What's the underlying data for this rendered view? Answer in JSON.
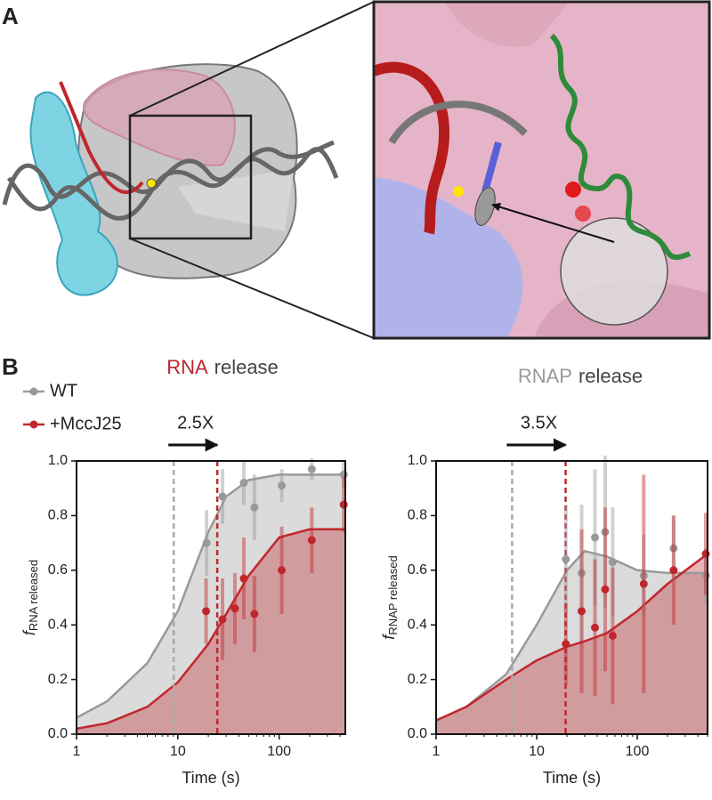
{
  "panel_labels": [
    "A",
    "B"
  ],
  "chart_data": [
    {
      "type": "scatter",
      "title": [
        "RNA",
        "release"
      ],
      "title_colors": [
        "#b9262f",
        "#444444"
      ],
      "xlabel": "Time (s)",
      "ylabel": "f",
      "ylabel_subscript": "RNA released",
      "xscale": "log",
      "xlim": [
        1,
        450
      ],
      "ylim": [
        0,
        1
      ],
      "xticks": [
        1,
        10,
        100
      ],
      "yticks": [
        {
          "value": 0,
          "label": "0.0"
        },
        0.2,
        0.4,
        0.6,
        0.8,
        {
          "value": 1,
          "label": "1.0"
        }
      ],
      "series": [
        {
          "name": "WT",
          "color": "#999999",
          "x": [
            19.2,
            27.6,
            44.8,
            57,
            106,
            210,
            434
          ],
          "values": [
            0.7,
            0.87,
            0.92,
            0.83,
            0.91,
            0.97,
            0.95
          ],
          "errors": [
            0.12,
            0.1,
            0.08,
            0.12,
            0.06,
            0.04,
            0.05
          ]
        },
        {
          "name": "+MccJ25",
          "color": "#c0272d",
          "x": [
            19,
            27.6,
            36.6,
            44.8,
            57,
            106,
            210,
            434
          ],
          "values": [
            0.45,
            0.42,
            0.46,
            0.57,
            0.44,
            0.6,
            0.71,
            0.84
          ],
          "errors": [
            0.12,
            0.15,
            0.13,
            0.15,
            0.14,
            0.16,
            0.12,
            0.1
          ]
        }
      ],
      "curve_x": [
        1,
        2,
        5,
        10,
        20,
        30,
        50,
        100,
        200,
        450
      ],
      "curves": [
        {
          "color": "#999999",
          "values": [
            0.06,
            0.12,
            0.26,
            0.45,
            0.74,
            0.87,
            0.93,
            0.95,
            0.95,
            0.95
          ]
        },
        {
          "color": "#c0272d",
          "values": [
            0.02,
            0.04,
            0.1,
            0.19,
            0.33,
            0.44,
            0.58,
            0.72,
            0.75,
            0.75
          ]
        }
      ],
      "markers": [
        {
          "x": 9.1,
          "color": "#aaaaaa"
        },
        {
          "x": 24.5,
          "color": "#c0272d"
        }
      ],
      "annotation": "2.5X"
    },
    {
      "type": "scatter",
      "title": [
        "RNAP",
        "release"
      ],
      "title_colors": [
        "#999999",
        "#444444"
      ],
      "xlabel": "Time (s)",
      "ylabel": "f",
      "ylabel_subscript": "RNAP released",
      "xscale": "log",
      "xlim": [
        1,
        500
      ],
      "ylim": [
        0,
        1
      ],
      "xticks": [
        1,
        10,
        100
      ],
      "yticks": [
        {
          "value": 0,
          "label": "0.0"
        },
        0.2,
        0.4,
        0.6,
        0.8,
        {
          "value": 1,
          "label": "1.0"
        }
      ],
      "series": [
        {
          "color": "#999999",
          "x": [
            19.5,
            28,
            38,
            48,
            57,
            116,
            230,
            480
          ],
          "values": [
            0.64,
            0.59,
            0.72,
            0.74,
            0.63,
            0.58,
            0.68,
            0.58
          ],
          "errors": [
            0.2,
            0.25,
            0.25,
            0.28,
            0.2,
            0.15,
            0.12,
            0.1
          ]
        },
        {
          "color": "#c0272d",
          "x": [
            19.5,
            28,
            38,
            48,
            57,
            116,
            230,
            480
          ],
          "values": [
            0.33,
            0.45,
            0.39,
            0.53,
            0.36,
            0.55,
            0.6,
            0.66
          ],
          "errors": [
            0.15,
            0.3,
            0.25,
            0.3,
            0.25,
            0.4,
            0.2,
            0.15
          ]
        }
      ],
      "curve_x": [
        1,
        2,
        5,
        10,
        20,
        30,
        50,
        100,
        200,
        500
      ],
      "curves": [
        {
          "color": "#999999",
          "values": [
            0.05,
            0.1,
            0.22,
            0.4,
            0.6,
            0.67,
            0.65,
            0.6,
            0.59,
            0.59
          ]
        },
        {
          "color": "#c0272d",
          "values": [
            0.05,
            0.1,
            0.2,
            0.27,
            0.32,
            0.34,
            0.37,
            0.45,
            0.55,
            0.66
          ]
        }
      ],
      "markers": [
        {
          "x": 5.7,
          "color": "#aaaaaa"
        },
        {
          "x": 19.4,
          "color": "#c0272d"
        }
      ],
      "annotation": "3.5X"
    }
  ]
}
